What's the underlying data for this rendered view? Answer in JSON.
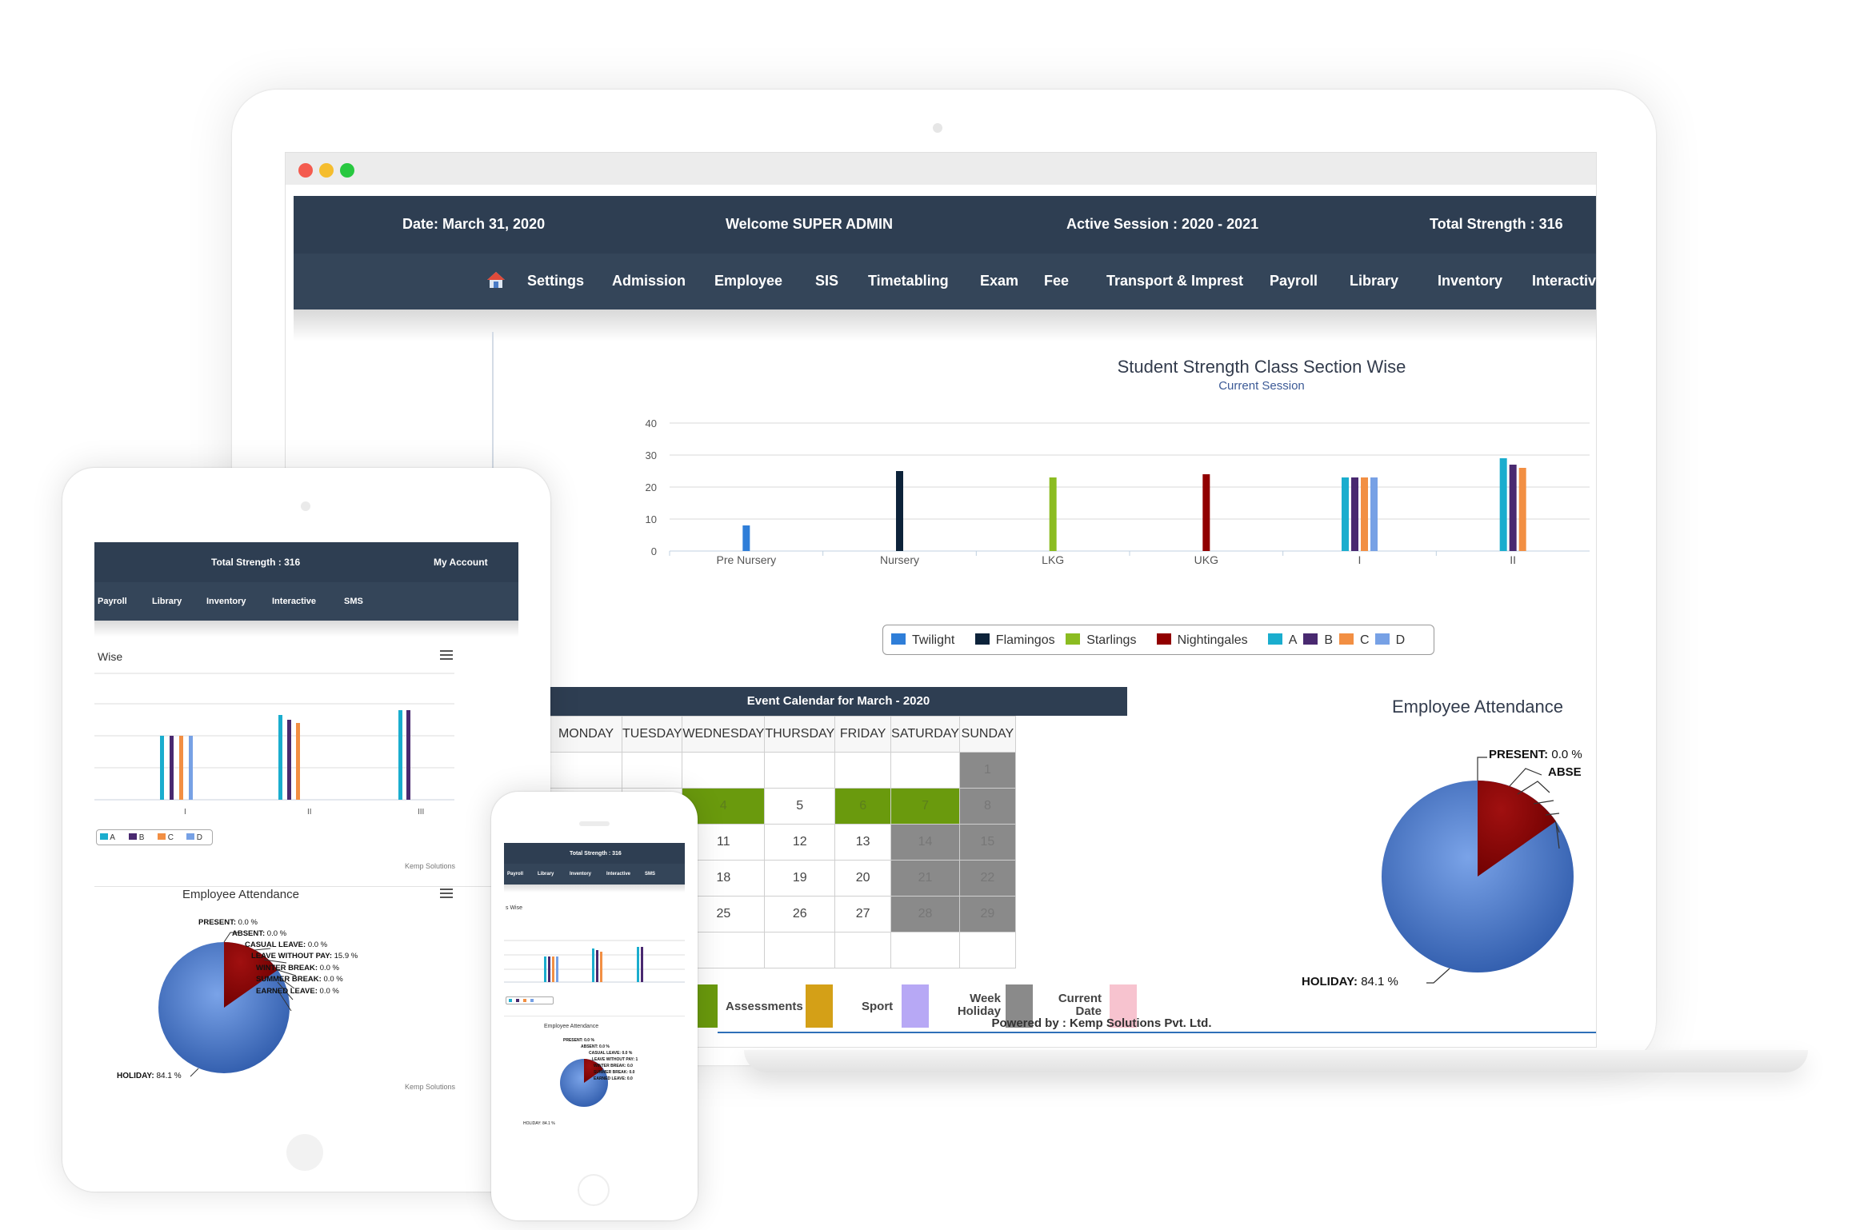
{
  "laptop": {
    "header": {
      "date": "Date: March 31, 2020",
      "welcome": "Welcome SUPER ADMIN",
      "session": "Active Session : 2020 - 2021",
      "strength": "Total Strength : 316"
    },
    "nav": [
      "Settings",
      "Admission",
      "Employee",
      "SIS",
      "Timetabling",
      "Exam",
      "Fee",
      "Transport & Imprest",
      "Payroll",
      "Library",
      "Inventory",
      "Interactive"
    ],
    "chart": {
      "title": "Student Strength Class Section Wise",
      "subtitle": "Current Session"
    },
    "calendar": {
      "title": "Event Calendar for March - 2020",
      "days": [
        "MONDAY",
        "TUESDAY",
        "WEDNESDAY",
        "THURSDAY",
        "FRIDAY",
        "SATURDAY",
        "SUNDAY"
      ],
      "weeks": [
        [
          "",
          "",
          "",
          "",
          "",
          "",
          "1"
        ],
        [
          "",
          "",
          "4",
          "5",
          "6",
          "7",
          "8"
        ],
        [
          "",
          "",
          "11",
          "12",
          "13",
          "14",
          "15"
        ],
        [
          "",
          "",
          "18",
          "19",
          "20",
          "21",
          "22"
        ],
        [
          "",
          "",
          "25",
          "26",
          "27",
          "28",
          "29"
        ],
        [
          "",
          "",
          "",
          "",
          "",
          "",
          ""
        ]
      ]
    },
    "legend_keys": {
      "assessments": "Assessments",
      "sport": "Sport",
      "week_holiday": "Week Holiday",
      "current_date": "Current Date"
    },
    "employee_attendance": {
      "title": "Employee Attendance",
      "present": "PRESENT:",
      "present_val": "0.0 %",
      "absent_cut": "ABSE",
      "holiday": "HOLIDAY:",
      "holiday_val": "84.1 %"
    },
    "footer": "Powered by : Kemp Solutions Pvt. Ltd."
  },
  "tablet": {
    "strength": "Total Strength : 316",
    "account": "My Account",
    "nav": [
      "Payroll",
      "Library",
      "Inventory",
      "Interactive",
      "SMS"
    ],
    "chart_title_cut": "Wise",
    "x_labels": [
      "I",
      "II",
      "III"
    ],
    "legend": [
      "A",
      "B",
      "C",
      "D"
    ],
    "credit": "Kemp Solutions",
    "emp_title": "Employee Attendance",
    "pie_labels": [
      {
        "name": "PRESENT:",
        "val": "0.0 %"
      },
      {
        "name": "ABSENT:",
        "val": "0.0 %"
      },
      {
        "name": "CASUAL LEAVE:",
        "val": "0.0 %"
      },
      {
        "name": "LEAVE WITHOUT PAY:",
        "val": "15.9 %"
      },
      {
        "name": "WINTER BREAK:",
        "val": "0.0 %"
      },
      {
        "name": "SUMMER BREAK:",
        "val": "0.0 %"
      },
      {
        "name": "EARNED LEAVE:",
        "val": "0.0 %"
      }
    ],
    "holiday": "HOLIDAY:",
    "holiday_val": "84.1 %"
  },
  "phone": {
    "strength": "Total Strength : 316",
    "nav": [
      "Payroll",
      "Library",
      "Inventory",
      "Interactive",
      "SMS"
    ],
    "chart_title_cut": "s Wise",
    "emp_title": "Employee Attendance",
    "pie_labels": [
      "PRESENT: 0.0 %",
      "ABSENT: 0.0 %",
      "CASUAL LEAVE: 0.0 %",
      "LEAVE WITHOUT PAY: 1",
      "WINTER BREAK: 0.0",
      "SUMMER BREAK: 0.0",
      "EARNED LEAVE: 0.0"
    ],
    "holiday": "HOLIDAY: 84.1 %"
  },
  "chart_data": {
    "type": "bar",
    "title": "Student Strength Class Section Wise",
    "subtitle": "Current Session",
    "categories": [
      "Pre Nursery",
      "Nursery",
      "LKG",
      "UKG",
      "I",
      "II"
    ],
    "ylim": [
      0,
      40
    ],
    "yticks": [
      0,
      10,
      20,
      30,
      40
    ],
    "legend_position": "bottom",
    "series": [
      {
        "name": "Twilight",
        "color": "#2f7ed8",
        "values": [
          8,
          null,
          null,
          null,
          null,
          null
        ]
      },
      {
        "name": "Flamingos",
        "color": "#0d233a",
        "values": [
          null,
          25,
          null,
          null,
          null,
          null
        ]
      },
      {
        "name": "Starlings",
        "color": "#8bbc21",
        "values": [
          null,
          null,
          23,
          null,
          null,
          null
        ]
      },
      {
        "name": "Nightingales",
        "color": "#910000",
        "values": [
          null,
          null,
          null,
          24,
          null,
          null
        ]
      },
      {
        "name": "A",
        "color": "#1aadce",
        "values": [
          null,
          null,
          null,
          null,
          23,
          29
        ]
      },
      {
        "name": "B",
        "color": "#492970",
        "values": [
          null,
          null,
          null,
          null,
          23,
          27
        ]
      },
      {
        "name": "C",
        "color": "#f28f43",
        "values": [
          null,
          null,
          null,
          null,
          23,
          26
        ]
      },
      {
        "name": "D",
        "color": "#77a1e5",
        "values": [
          null,
          null,
          null,
          null,
          23,
          null
        ]
      }
    ]
  },
  "colors": {
    "header": "#2e3e52",
    "nav": "#344559",
    "assessments": "#d4a017",
    "sport": "#b7a8f5",
    "week_holiday": "#8a8a8a",
    "current_date": "#f7c3cf",
    "event_green": "#6a9a0d",
    "pie_holiday": "#3b6cc4",
    "pie_lwp": "#8b0000"
  }
}
